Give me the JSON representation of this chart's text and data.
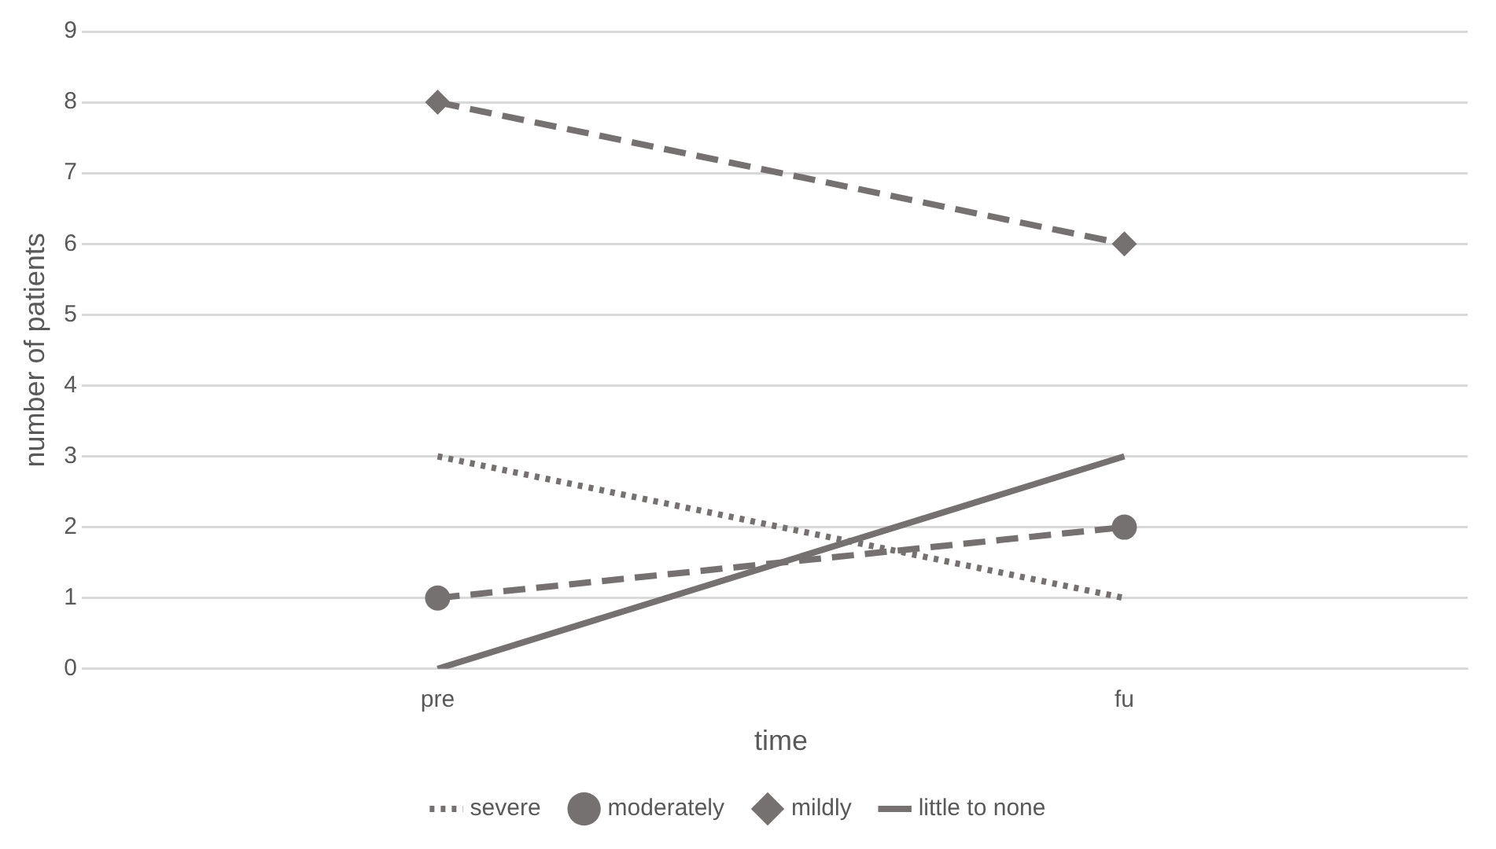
{
  "chart_data": {
    "type": "line",
    "xlabel": "time",
    "ylabel": "number of patients",
    "categories": [
      "pre",
      "fu"
    ],
    "series": [
      {
        "name": "severe",
        "color": "#767171",
        "values": [
          3,
          1
        ],
        "line_style": "dotted",
        "marker": "none"
      },
      {
        "name": "moderately",
        "color": "#767171",
        "values": [
          1,
          2
        ],
        "line_style": "dashed",
        "marker": "circle"
      },
      {
        "name": "mildly",
        "color": "#767171",
        "values": [
          8,
          6
        ],
        "line_style": "dashed",
        "marker": "diamond"
      },
      {
        "name": "little to none",
        "color": "#767171",
        "values": [
          0,
          3
        ],
        "line_style": "solid",
        "marker": "none"
      }
    ],
    "ylim": [
      0,
      9
    ],
    "yticks": [
      0,
      1,
      2,
      3,
      4,
      5,
      6,
      7,
      8,
      9
    ],
    "grid": "y",
    "legend": "bottom"
  }
}
